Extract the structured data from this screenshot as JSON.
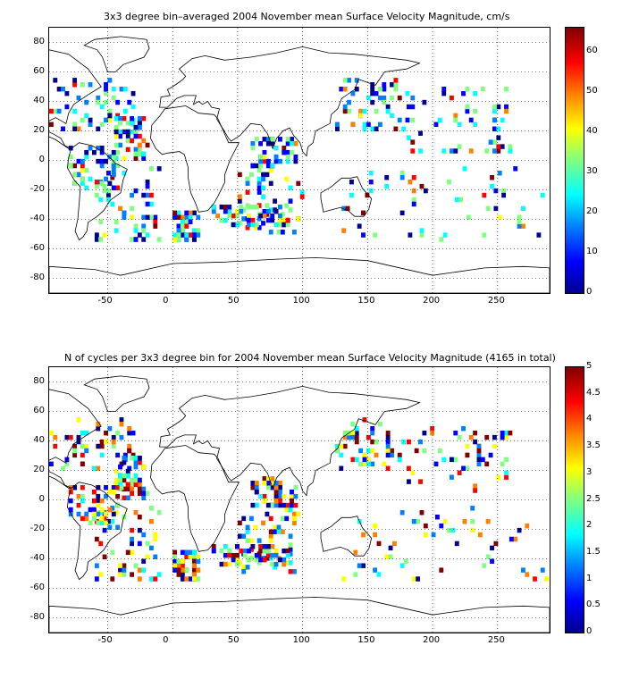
{
  "panels": [
    {
      "title": "3x3 degree bin–averaged 2004 November mean Surface Velocity Magnitude, cm/s",
      "x_ticks": [
        "-50",
        "0",
        "50",
        "100",
        "150",
        "200",
        "250"
      ],
      "y_ticks": [
        "80",
        "60",
        "40",
        "20",
        "0",
        "-20",
        "-40",
        "-60",
        "-80"
      ],
      "colorbar_ticks": [
        "60",
        "50",
        "40",
        "30",
        "20",
        "10",
        "0"
      ],
      "colorbar_range": [
        0,
        66
      ],
      "seed": 11
    },
    {
      "title": "N of cycles per 3x3 degree bin for 2004 November mean Surface Velocity Magnitude (4165 in total)",
      "x_ticks": [
        "-50",
        "0",
        "50",
        "100",
        "150",
        "200",
        "250"
      ],
      "y_ticks": [
        "80",
        "60",
        "40",
        "20",
        "0",
        "-20",
        "-40",
        "-60",
        "-80"
      ],
      "colorbar_ticks": [
        "5",
        "4.5",
        "4",
        "3.5",
        "3",
        "2.5",
        "2",
        "1.5",
        "1",
        "0.5",
        "0"
      ],
      "colorbar_range": [
        0,
        5
      ],
      "seed": 29
    }
  ],
  "chart_data": [
    {
      "type": "heatmap",
      "title": "3x3 degree bin–averaged 2004 November mean Surface Velocity Magnitude, cm/s",
      "xlim": [
        -95,
        290
      ],
      "ylim": [
        -90,
        90
      ],
      "grid": true,
      "colormap": "jet",
      "colorbar_range": [
        0,
        66
      ]
    },
    {
      "type": "heatmap",
      "title": "N of cycles per 3x3 degree bin for 2004 November mean Surface Velocity Magnitude (4165 in total)",
      "xlim": [
        -95,
        290
      ],
      "ylim": [
        -90,
        90
      ],
      "grid": true,
      "colormap": "jet",
      "colorbar_range": [
        0,
        5
      ]
    }
  ]
}
